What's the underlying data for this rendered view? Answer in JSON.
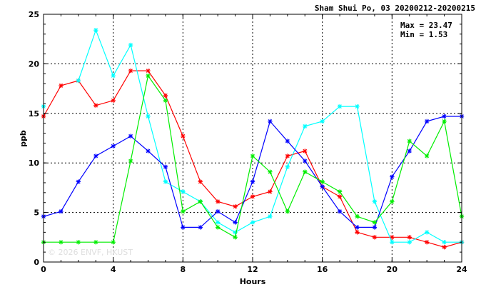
{
  "header": {
    "title": "Sham Shui Po, 03 20200212-20200215"
  },
  "stats": {
    "max_label": "Max = 23.47",
    "min_label": "Min =  1.53"
  },
  "watermark": "© 2026  ENVF, HKUST",
  "chart_data": {
    "type": "line",
    "title": "Sham Shui Po, 03 20200212-20200215",
    "xlabel": "Hours",
    "ylabel": "ppb",
    "xlim": [
      0,
      24
    ],
    "ylim": [
      0,
      25
    ],
    "x_ticks": [
      0,
      4,
      8,
      12,
      16,
      20,
      24
    ],
    "y_ticks": [
      0,
      5,
      10,
      15,
      20,
      25
    ],
    "grid": "dashed",
    "x": [
      0,
      1,
      2,
      3,
      4,
      5,
      6,
      7,
      8,
      9,
      10,
      11,
      12,
      13,
      14,
      15,
      16,
      17,
      18,
      19,
      20,
      21,
      22,
      23,
      24
    ],
    "series": [
      {
        "color": "#ff0000",
        "values": [
          14.7,
          17.8,
          18.3,
          15.8,
          16.3,
          19.3,
          19.3,
          16.8,
          12.7,
          8.1,
          6.1,
          5.6,
          6.6,
          7.1,
          10.7,
          11.2,
          7.6,
          6.6,
          3.0,
          2.5,
          2.5,
          2.5,
          2.0,
          1.5,
          2.0
        ]
      },
      {
        "color": "#00ffff",
        "values": [
          15.7,
          null,
          18.3,
          23.4,
          18.8,
          21.9,
          14.7,
          8.1,
          7.1,
          6.1,
          4.0,
          3.0,
          4.0,
          4.6,
          9.6,
          13.7,
          14.2,
          15.7,
          15.7,
          6.1,
          2.0,
          2.0,
          3.0,
          2.0,
          2.0
        ]
      },
      {
        "color": "#0000ff",
        "values": [
          4.6,
          5.1,
          8.1,
          10.7,
          11.7,
          12.7,
          11.2,
          9.6,
          3.5,
          3.5,
          5.1,
          4.0,
          8.1,
          14.2,
          12.2,
          10.2,
          7.6,
          5.1,
          3.5,
          3.5,
          8.6,
          11.2,
          14.2,
          14.7,
          14.7
        ]
      },
      {
        "color": "#00ee00",
        "values": [
          2.0,
          2.0,
          2.0,
          2.0,
          2.0,
          10.2,
          18.8,
          16.3,
          5.1,
          6.1,
          3.5,
          2.5,
          10.7,
          9.1,
          5.1,
          9.1,
          8.1,
          7.1,
          4.6,
          4.0,
          6.1,
          12.2,
          10.7,
          14.2,
          4.6
        ]
      }
    ]
  }
}
